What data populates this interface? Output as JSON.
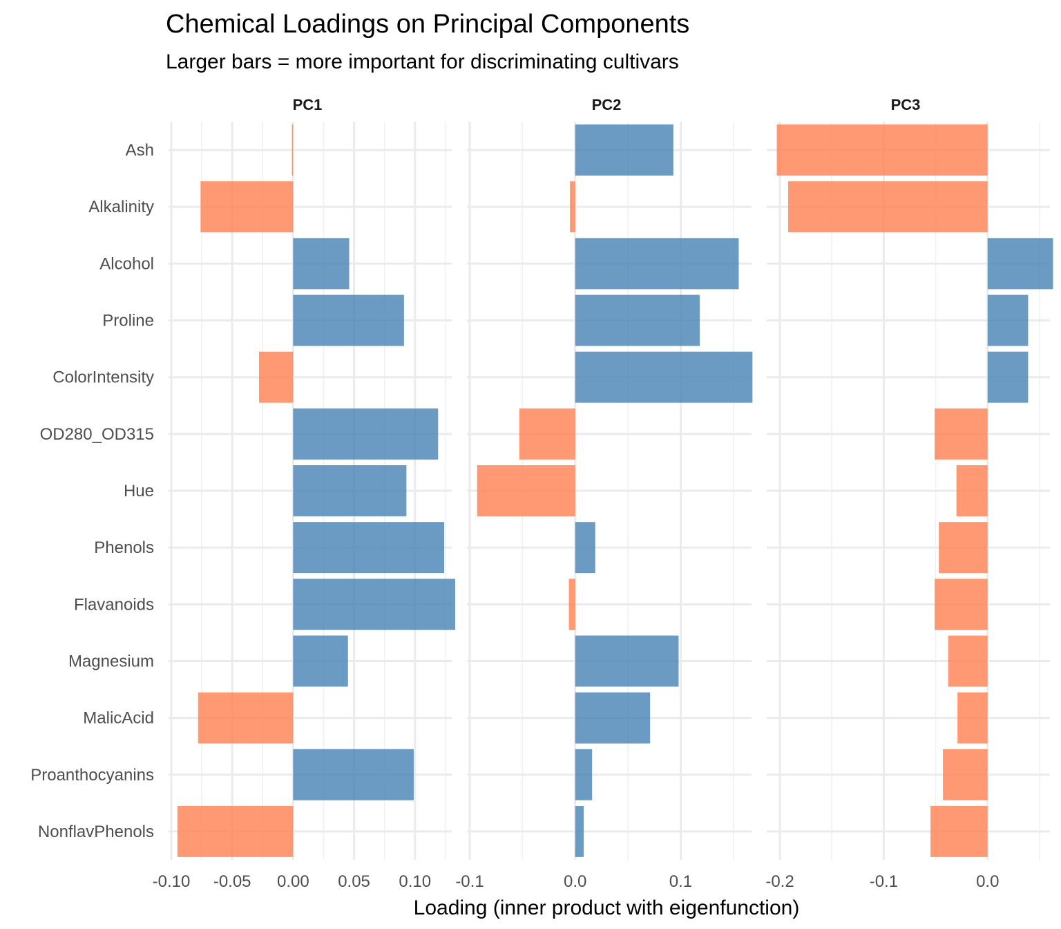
{
  "chart_data": {
    "type": "bar",
    "orientation": "horizontal",
    "title": "Chemical Loadings on Principal Components",
    "subtitle": "Larger bars = more important for discriminating cultivars",
    "xlabel": "Loading (inner product with eigenfunction)",
    "ylabel": "",
    "grid": true,
    "legend": "none",
    "colors": {
      "positive": "#4682B4",
      "negative": "#FF7F50"
    },
    "categories": [
      "Ash",
      "Alkalinity",
      "Alcohol",
      "Proline",
      "ColorIntensity",
      "OD280_OD315",
      "Hue",
      "Phenols",
      "Flavanoids",
      "Magnesium",
      "MalicAcid",
      "Proanthocyanins",
      "NonflavPhenols"
    ],
    "panels": [
      {
        "name": "PC1",
        "xlim": [
          -0.1,
          0.137
        ],
        "ticks": [
          -0.1,
          -0.05,
          0.0,
          0.05,
          0.1
        ],
        "tick_labels": [
          "-0.10",
          "-0.05",
          "0.00",
          "0.05",
          "0.10"
        ],
        "values": [
          -0.001,
          -0.076,
          0.046,
          0.091,
          -0.028,
          0.119,
          0.093,
          0.124,
          0.133,
          0.045,
          -0.078,
          0.099,
          -0.095
        ]
      },
      {
        "name": "PC2",
        "xlim": [
          -0.1,
          0.175
        ],
        "ticks": [
          -0.1,
          0.0,
          0.1
        ],
        "tick_labels": [
          "-0.1",
          "0.0",
          "0.1"
        ],
        "values": [
          0.093,
          -0.005,
          0.155,
          0.118,
          0.168,
          -0.053,
          -0.093,
          0.019,
          -0.006,
          0.098,
          0.071,
          0.016,
          0.008
        ]
      },
      {
        "name": "PC3",
        "xlim": [
          -0.21,
          0.068
        ],
        "ticks": [
          -0.2,
          -0.1,
          0.0
        ],
        "tick_labels": [
          "-0.2",
          "-0.1",
          "0.0"
        ],
        "values": [
          -0.203,
          -0.192,
          0.063,
          0.039,
          0.039,
          -0.051,
          -0.03,
          -0.047,
          -0.051,
          -0.038,
          -0.029,
          -0.043,
          -0.055
        ]
      }
    ]
  }
}
